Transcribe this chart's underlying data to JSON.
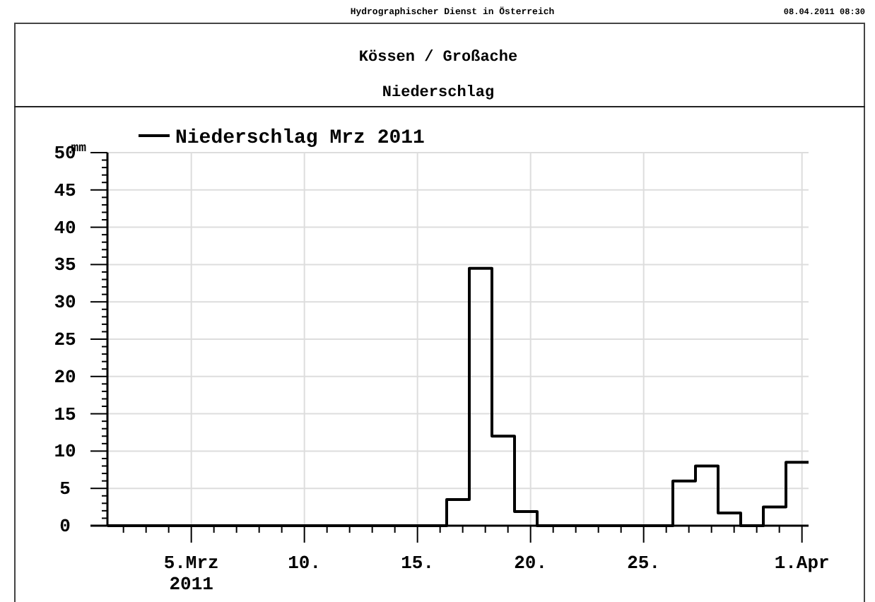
{
  "chart_data": {
    "type": "step",
    "title": "Kössen / Großache",
    "subtitle": "Niederschlag",
    "ylabel": "mm",
    "annotations": [
      "Hydrographischer Dienst in Österreich",
      "08.04.2011 08:30"
    ],
    "x": [
      "2011-03-01T07:00",
      "2011-03-02T07:00",
      "2011-03-03T07:00",
      "2011-03-04T07:00",
      "2011-03-05T07:00",
      "2011-03-06T07:00",
      "2011-03-07T07:00",
      "2011-03-08T07:00",
      "2011-03-09T07:00",
      "2011-03-10T07:00",
      "2011-03-11T07:00",
      "2011-03-12T07:00",
      "2011-03-13T07:00",
      "2011-03-14T07:00",
      "2011-03-15T07:00",
      "2011-03-16T07:00",
      "2011-03-17T07:00",
      "2011-03-18T07:00",
      "2011-03-19T07:00",
      "2011-03-20T07:00",
      "2011-03-21T07:00",
      "2011-03-22T07:00",
      "2011-03-23T07:00",
      "2011-03-24T07:00",
      "2011-03-25T07:00",
      "2011-03-26T07:00",
      "2011-03-27T07:00",
      "2011-03-28T07:00",
      "2011-03-29T07:00",
      "2011-03-30T07:00",
      "2011-03-31T07:00",
      "2011-04-01T07:00"
    ],
    "series": [
      {
        "name": "Niederschlag Mrz 2011",
        "color": "#000000",
        "values": [
          0,
          0,
          0,
          0,
          0,
          0,
          0,
          0,
          0,
          0,
          0,
          0,
          0,
          0,
          0,
          3.5,
          34.5,
          12,
          1.9,
          0,
          0,
          0,
          0,
          0,
          0,
          6,
          8,
          1.7,
          0,
          2.5,
          8.5,
          8.5
        ]
      }
    ],
    "xlim": [
      "2011-03-01T07:00",
      "2011-04-01T07:00"
    ],
    "xticks": [
      {
        "value": "2011-03-02",
        "label": null
      },
      {
        "value": "2011-03-03",
        "label": null
      },
      {
        "value": "2011-03-04",
        "label": null
      },
      {
        "value": "2011-03-05",
        "label": "5.Mrz\n2011"
      },
      {
        "value": "2011-03-06",
        "label": null
      },
      {
        "value": "2011-03-07",
        "label": null
      },
      {
        "value": "2011-03-08",
        "label": null
      },
      {
        "value": "2011-03-09",
        "label": null
      },
      {
        "value": "2011-03-10",
        "label": "10."
      },
      {
        "value": "2011-03-11",
        "label": null
      },
      {
        "value": "2011-03-12",
        "label": null
      },
      {
        "value": "2011-03-13",
        "label": null
      },
      {
        "value": "2011-03-14",
        "label": null
      },
      {
        "value": "2011-03-15",
        "label": "15."
      },
      {
        "value": "2011-03-16",
        "label": null
      },
      {
        "value": "2011-03-17",
        "label": null
      },
      {
        "value": "2011-03-18",
        "label": null
      },
      {
        "value": "2011-03-19",
        "label": null
      },
      {
        "value": "2011-03-20",
        "label": "20."
      },
      {
        "value": "2011-03-21",
        "label": null
      },
      {
        "value": "2011-03-22",
        "label": null
      },
      {
        "value": "2011-03-23",
        "label": null
      },
      {
        "value": "2011-03-24",
        "label": null
      },
      {
        "value": "2011-03-25",
        "label": "25."
      },
      {
        "value": "2011-03-26",
        "label": null
      },
      {
        "value": "2011-03-27",
        "label": null
      },
      {
        "value": "2011-03-28",
        "label": null
      },
      {
        "value": "2011-03-29",
        "label": null
      },
      {
        "value": "2011-03-30",
        "label": null
      },
      {
        "value": "2011-03-31",
        "label": null
      },
      {
        "value": "2011-04-01",
        "label": "1.Apr"
      }
    ],
    "ylim": [
      0,
      50
    ],
    "yticks": [
      0,
      {
        "value": 1,
        "label": null
      },
      {
        "value": 2,
        "label": null
      },
      {
        "value": 3,
        "label": null
      },
      {
        "value": 4,
        "label": null
      },
      5,
      {
        "value": 6,
        "label": null
      },
      {
        "value": 7,
        "label": null
      },
      {
        "value": 8,
        "label": null
      },
      {
        "value": 9,
        "label": null
      },
      10,
      {
        "value": 11,
        "label": null
      },
      {
        "value": 12,
        "label": null
      },
      {
        "value": 13,
        "label": null
      },
      {
        "value": 14,
        "label": null
      },
      15,
      {
        "value": 16,
        "label": null
      },
      {
        "value": 17,
        "label": null
      },
      {
        "value": 18,
        "label": null
      },
      {
        "value": 19,
        "label": null
      },
      20,
      {
        "value": 21,
        "label": null
      },
      {
        "value": 22,
        "label": null
      },
      {
        "value": 23,
        "label": null
      },
      {
        "value": 24,
        "label": null
      },
      25,
      {
        "value": 26,
        "label": null
      },
      {
        "value": 27,
        "label": null
      },
      {
        "value": 28,
        "label": null
      },
      {
        "value": 29,
        "label": null
      },
      30,
      {
        "value": 31,
        "label": null
      },
      {
        "value": 32,
        "label": null
      },
      {
        "value": 33,
        "label": null
      },
      {
        "value": 34,
        "label": null
      },
      35,
      {
        "value": 36,
        "label": null
      },
      {
        "value": 37,
        "label": null
      },
      {
        "value": 38,
        "label": null
      },
      {
        "value": 39,
        "label": null
      },
      40,
      {
        "value": 41,
        "label": null
      },
      {
        "value": 42,
        "label": null
      },
      {
        "value": 43,
        "label": null
      },
      {
        "value": 44,
        "label": null
      },
      45,
      {
        "value": 46,
        "label": null
      },
      {
        "value": 47,
        "label": null
      },
      {
        "value": 48,
        "label": null
      },
      {
        "value": 49,
        "label": null
      },
      50
    ],
    "grid": true,
    "legend": "top left",
    "line_style": "solid"
  }
}
